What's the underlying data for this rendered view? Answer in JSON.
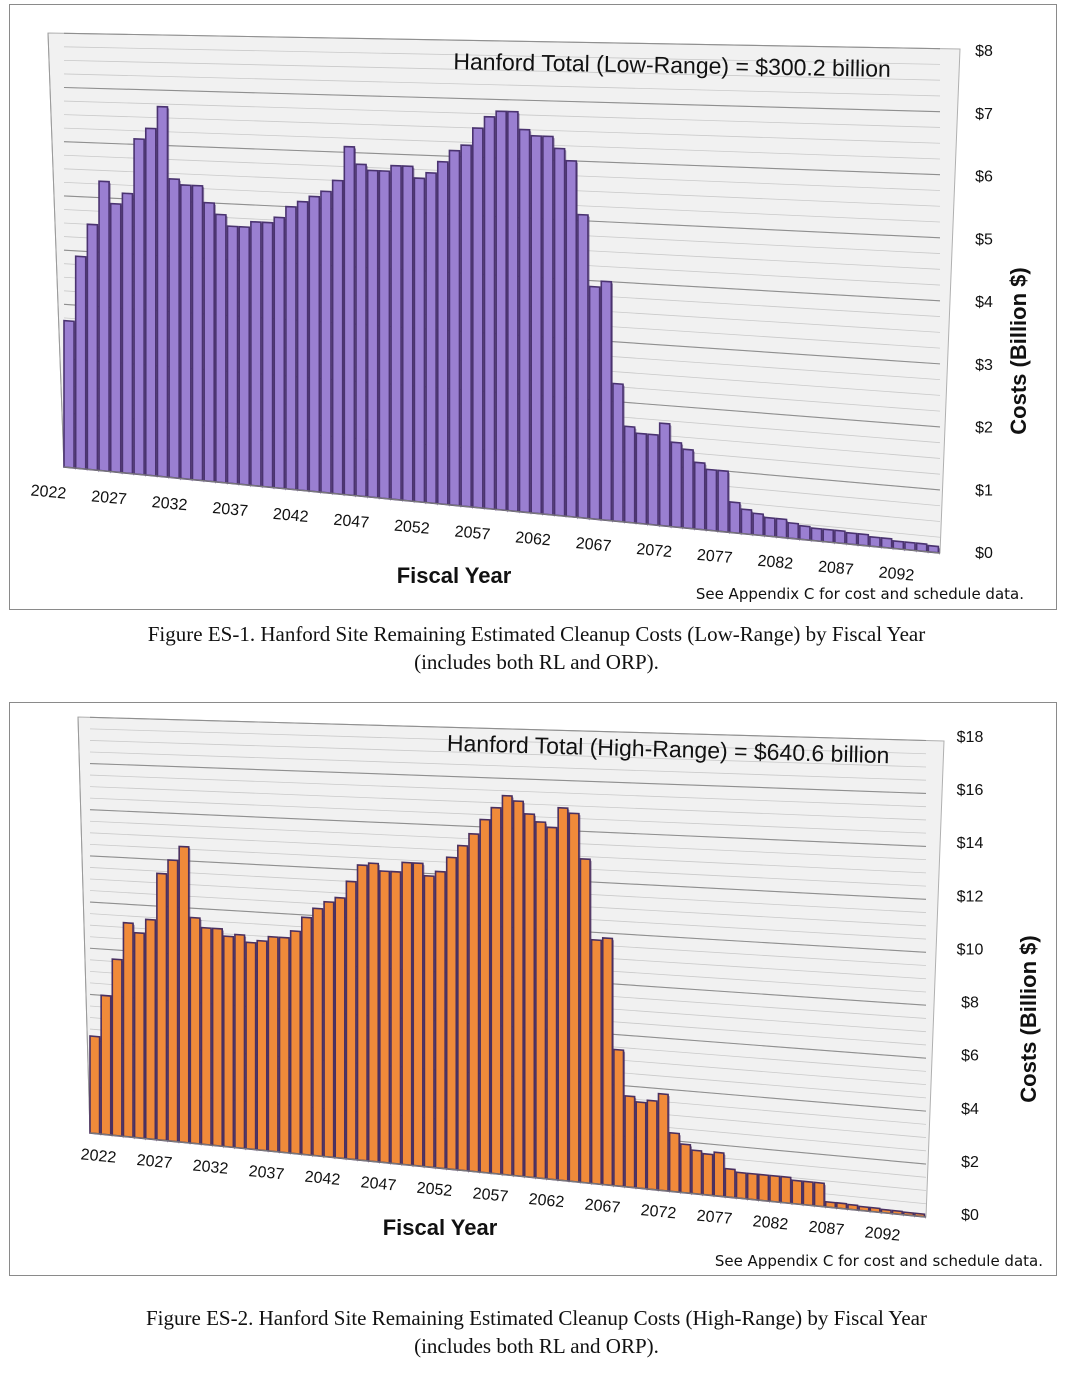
{
  "figures": [
    {
      "caption_line1": "Figure ES-1.  Hanford Site Remaining Estimated Cleanup Costs (Low-Range) by Fiscal Year",
      "caption_line2": "(includes both RL and ORP).",
      "note": "See Appendix C for cost and schedule data.",
      "bar_color": "#9a7fd1",
      "bar_edge_color": "#4a3370"
    },
    {
      "caption_line1": "Figure ES-2.  Hanford Site Remaining Estimated Cleanup Costs (High-Range) by Fiscal Year",
      "caption_line2": "(includes both RL and ORP).",
      "note": "See Appendix C for cost and schedule data.",
      "bar_color": "#f08a3a",
      "bar_edge_color": "#4a3060"
    }
  ],
  "chart_data": [
    {
      "type": "bar",
      "title": "Hanford Total (Low-Range)  =  $300.2 billion",
      "xlabel": "Fiscal Year",
      "ylabel": "Costs (Billion $)",
      "ylim": [
        0,
        8
      ],
      "yticks": [
        "$0",
        "$1",
        "$2",
        "$3",
        "$4",
        "$5",
        "$6",
        "$7",
        "$8"
      ],
      "xtick_labels": [
        "2022",
        "2027",
        "2032",
        "2037",
        "2042",
        "2047",
        "2052",
        "2057",
        "2062",
        "2067",
        "2072",
        "2077",
        "2082",
        "2087",
        "2092"
      ],
      "grid": true,
      "categories": [
        2022,
        2023,
        2024,
        2025,
        2026,
        2027,
        2028,
        2029,
        2030,
        2031,
        2032,
        2033,
        2034,
        2035,
        2036,
        2037,
        2038,
        2039,
        2040,
        2041,
        2042,
        2043,
        2044,
        2045,
        2046,
        2047,
        2048,
        2049,
        2050,
        2051,
        2052,
        2053,
        2054,
        2055,
        2056,
        2057,
        2058,
        2059,
        2060,
        2061,
        2062,
        2063,
        2064,
        2065,
        2066,
        2067,
        2068,
        2069,
        2070,
        2071,
        2072,
        2073,
        2074,
        2075,
        2076,
        2077,
        2078,
        2079,
        2080,
        2081,
        2082,
        2083,
        2084,
        2085,
        2086,
        2087,
        2088,
        2089,
        2090,
        2091,
        2092,
        2093,
        2094,
        2095,
        2096
      ],
      "values": [
        2.7,
        3.9,
        4.5,
        5.3,
        4.9,
        5.1,
        6.1,
        6.3,
        6.7,
        5.4,
        5.3,
        5.3,
        5.0,
        4.8,
        4.6,
        4.6,
        4.7,
        4.7,
        4.8,
        5.0,
        5.1,
        5.2,
        5.3,
        5.5,
        6.1,
        5.8,
        5.7,
        5.7,
        5.8,
        5.8,
        5.6,
        5.7,
        5.9,
        6.1,
        6.2,
        6.5,
        6.7,
        6.8,
        6.8,
        6.5,
        6.4,
        6.4,
        6.2,
        6.0,
        5.1,
        3.9,
        4.0,
        2.3,
        1.6,
        1.5,
        1.5,
        1.7,
        1.4,
        1.3,
        1.1,
        1.0,
        1.0,
        0.5,
        0.4,
        0.35,
        0.3,
        0.3,
        0.25,
        0.22,
        0.2,
        0.2,
        0.2,
        0.18,
        0.18,
        0.15,
        0.15,
        0.12,
        0.12,
        0.12,
        0.1
      ]
    },
    {
      "type": "bar",
      "title": "Hanford Total (High-Range)  =  $640.6 billion",
      "xlabel": "Fiscal Year",
      "ylabel": "Costs (Billion $)",
      "ylim": [
        0,
        18
      ],
      "yticks": [
        "$0",
        "$2",
        "$4",
        "$6",
        "$8",
        "$10",
        "$12",
        "$14",
        "$16",
        "$18"
      ],
      "xtick_labels": [
        "2022",
        "2027",
        "2032",
        "2037",
        "2042",
        "2047",
        "2052",
        "2057",
        "2062",
        "2067",
        "2072",
        "2077",
        "2082",
        "2087",
        "2092"
      ],
      "grid": true,
      "categories": [
        2022,
        2023,
        2024,
        2025,
        2026,
        2027,
        2028,
        2029,
        2030,
        2031,
        2032,
        2033,
        2034,
        2035,
        2036,
        2037,
        2038,
        2039,
        2040,
        2041,
        2042,
        2043,
        2044,
        2045,
        2046,
        2047,
        2048,
        2049,
        2050,
        2051,
        2052,
        2053,
        2054,
        2055,
        2056,
        2057,
        2058,
        2059,
        2060,
        2061,
        2062,
        2063,
        2064,
        2065,
        2066,
        2067,
        2068,
        2069,
        2070,
        2071,
        2072,
        2073,
        2074,
        2075,
        2076,
        2077,
        2078,
        2079,
        2080,
        2081,
        2082,
        2083,
        2084,
        2085,
        2086,
        2087,
        2088,
        2089,
        2090,
        2091,
        2092,
        2093,
        2094,
        2095,
        2096
      ],
      "values": [
        4.2,
        6.0,
        7.6,
        9.2,
        8.8,
        9.4,
        11.4,
        12.0,
        12.6,
        9.6,
        9.2,
        9.2,
        8.9,
        9.0,
        8.7,
        8.8,
        9.0,
        9.0,
        9.3,
        9.9,
        10.3,
        10.6,
        10.8,
        11.5,
        12.2,
        12.3,
        12.0,
        12.0,
        12.4,
        12.4,
        11.9,
        12.1,
        12.7,
        13.2,
        13.7,
        14.3,
        14.8,
        15.3,
        15.1,
        14.6,
        14.3,
        14.1,
        14.9,
        14.7,
        12.9,
        9.7,
        9.8,
        5.4,
        3.6,
        3.4,
        3.5,
        3.8,
        2.3,
        1.9,
        1.7,
        1.6,
        1.7,
        1.1,
        1.0,
        1.0,
        1.0,
        1.0,
        1.0,
        0.9,
        0.9,
        0.9,
        0.2,
        0.2,
        0.18,
        0.15,
        0.15,
        0.12,
        0.12,
        0.1,
        0.1
      ]
    }
  ]
}
